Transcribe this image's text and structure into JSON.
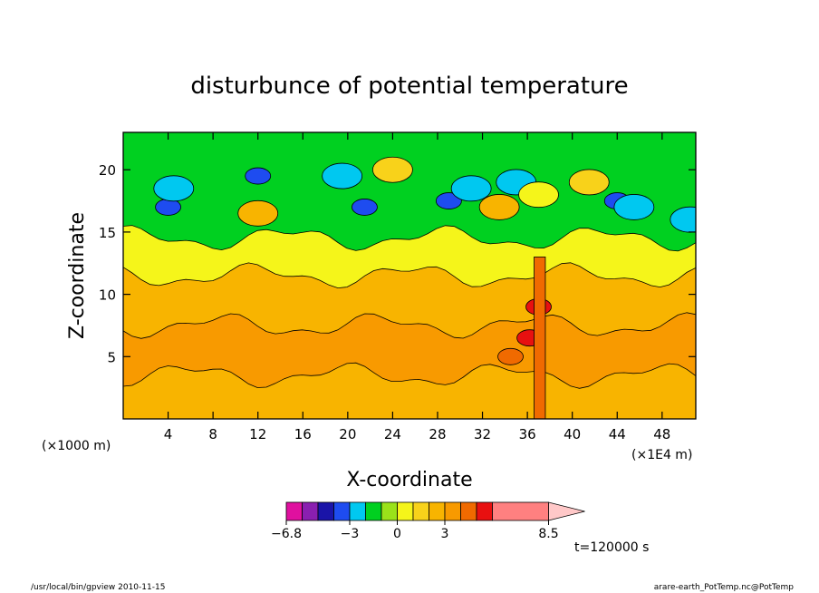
{
  "chart_data": {
    "type": "heatmap",
    "title": "disturbunce of potential temperature",
    "xlabel": "X-coordinate",
    "ylabel": "Z-coordinate",
    "x_unit_left": "(×1000 m)",
    "x_unit_right": "(×1E4 m)",
    "xlim": [
      0,
      51
    ],
    "ylim": [
      0,
      23
    ],
    "x_ticks": [
      "4",
      "8",
      "12",
      "16",
      "20",
      "24",
      "28",
      "32",
      "36",
      "40",
      "44",
      "48"
    ],
    "x_tick_values": [
      4,
      8,
      12,
      16,
      20,
      24,
      28,
      32,
      36,
      40,
      44,
      48
    ],
    "y_ticks": [
      "5",
      "10",
      "15",
      "20"
    ],
    "y_tick_values": [
      5,
      10,
      15,
      20
    ],
    "time_label": "t=120000 s",
    "colorbar": {
      "tick_labels": [
        "−6.8",
        "−3",
        "0",
        "3",
        "8.5"
      ],
      "tick_values": [
        -6.8,
        -3,
        0,
        3,
        8.5
      ],
      "bins": [
        {
          "min": -6.8,
          "max": -6,
          "color": "#e0109f"
        },
        {
          "min": -6,
          "max": -5,
          "color": "#8a1fb0"
        },
        {
          "min": -5,
          "max": -4,
          "color": "#1a14a8"
        },
        {
          "min": -4,
          "max": -3,
          "color": "#1e4cf0"
        },
        {
          "min": -3,
          "max": -2,
          "color": "#00c8f0"
        },
        {
          "min": -2,
          "max": -1,
          "color": "#00d020"
        },
        {
          "min": -1,
          "max": 0,
          "color": "#9ae21a"
        },
        {
          "min": 0,
          "max": 1,
          "color": "#f5f51a"
        },
        {
          "min": 1,
          "max": 2,
          "color": "#f8d21a"
        },
        {
          "min": 2,
          "max": 3,
          "color": "#f8b400"
        },
        {
          "min": 3,
          "max": 4,
          "color": "#f89a00"
        },
        {
          "min": 4,
          "max": 5,
          "color": "#f06a00"
        },
        {
          "min": 5,
          "max": 6,
          "color": "#e81010"
        },
        {
          "min": 6,
          "max": 8.5,
          "color": "#ff8080"
        }
      ],
      "over_color": "#ffc8c8"
    },
    "layers": [
      {
        "z_top": 3.5,
        "value": 2.5
      },
      {
        "z_top": 7.5,
        "value": 3.5
      },
      {
        "z_top": 11.5,
        "value": 2.5
      },
      {
        "z_top": 14.5,
        "value": 0.5
      },
      {
        "z_top": 23,
        "value": -1.5
      }
    ],
    "features": [
      {
        "x": 4.0,
        "z": 17.0,
        "value": -3.5
      },
      {
        "x": 4.5,
        "z": 18.5,
        "value": -2.5
      },
      {
        "x": 12.0,
        "z": 19.5,
        "value": -3.5
      },
      {
        "x": 12.0,
        "z": 16.5,
        "value": 2.5
      },
      {
        "x": 19.5,
        "z": 19.5,
        "value": -2.5
      },
      {
        "x": 21.5,
        "z": 17.0,
        "value": -3.5
      },
      {
        "x": 24.0,
        "z": 20.0,
        "value": 1.5
      },
      {
        "x": 29.0,
        "z": 17.5,
        "value": -3.5
      },
      {
        "x": 31.0,
        "z": 18.5,
        "value": -2.5
      },
      {
        "x": 33.5,
        "z": 17.0,
        "value": 2.5
      },
      {
        "x": 35.0,
        "z": 19.0,
        "value": -2.5
      },
      {
        "x": 37.0,
        "z": 18.0,
        "value": 0.5
      },
      {
        "x": 41.5,
        "z": 19.0,
        "value": 1.5
      },
      {
        "x": 44.0,
        "z": 17.5,
        "value": -3.5
      },
      {
        "x": 45.5,
        "z": 17.0,
        "value": -2.5
      },
      {
        "x": 50.5,
        "z": 16.0,
        "value": -2.5
      },
      {
        "x": 37.0,
        "z": 9.0,
        "value": 5.5
      },
      {
        "x": 36.2,
        "z": 6.5,
        "value": 5.5
      },
      {
        "x": 34.5,
        "z": 5.0,
        "value": 4.5
      }
    ]
  },
  "footer": {
    "left": "/usr/local/bin/gpview  2010-11-15",
    "right": "arare-earth_PotTemp.nc@PotTemp"
  }
}
